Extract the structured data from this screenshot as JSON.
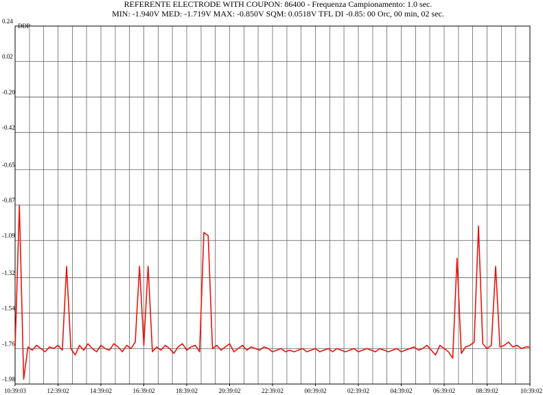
{
  "chart_data": {
    "type": "line",
    "title": "REFERENTE ELECTRODE WITH COUPON: 86400 - Frequenza Campionamento: 1.0 sec.",
    "subtitle": "MIN: -1.940V MED: -1.719V MAX: -0.850V SQM: 0.0518V TFL DI -0.85: 00 Orc, 00 min, 02 sec.",
    "y_label": "DDP",
    "ylim": [
      -1.98,
      0.24
    ],
    "yticks": [
      0.24,
      0.02,
      {
        "value": -0.2,
        "label": "-0.20"
      },
      -0.42,
      -0.65,
      -0.87,
      -1.09,
      -1.32,
      -1.54,
      -1.76,
      -1.98
    ],
    "xlim": [
      0,
      24
    ],
    "xticks": [
      {
        "value": 0,
        "label": "10:39:03"
      },
      {
        "value": 2,
        "label": "12:39:02"
      },
      {
        "value": 4,
        "label": "14:39:02"
      },
      {
        "value": 6,
        "label": "16:39:02"
      },
      {
        "value": 8,
        "label": "18:39:02"
      },
      {
        "value": 10,
        "label": "20:39:02"
      },
      {
        "value": 12,
        "label": "22:39:02"
      },
      {
        "value": 14,
        "label": "00:39:02"
      },
      {
        "value": 16,
        "label": "02:39:02"
      },
      {
        "value": 18,
        "label": "04:39:02"
      },
      {
        "value": 20,
        "label": "06:39:02"
      },
      {
        "value": 22,
        "label": "08:39:02"
      },
      {
        "value": 24,
        "label": "10:39:02"
      }
    ],
    "x_grid": [
      0,
      0.67,
      1.33,
      2,
      2.67,
      3.33,
      4,
      4.67,
      5.33,
      6,
      6.67,
      7.33,
      8,
      8.67,
      9.33,
      10,
      10.67,
      11.33,
      12,
      12.67,
      13.33,
      14,
      14.67,
      15.33,
      16,
      16.67,
      17.33,
      18,
      18.67,
      19.33,
      20,
      20.67,
      21.33,
      22,
      22.67,
      23.33,
      24
    ],
    "grid": true,
    "x": [
      0,
      0.2,
      0.4,
      0.6,
      0.8,
      1,
      1.2,
      1.4,
      1.6,
      1.8,
      2,
      2.2,
      2.4,
      2.6,
      2.8,
      3,
      3.2,
      3.4,
      3.6,
      3.8,
      4,
      4.2,
      4.4,
      4.6,
      4.8,
      5,
      5.2,
      5.4,
      5.6,
      5.8,
      6,
      6.2,
      6.4,
      6.6,
      6.8,
      7,
      7.2,
      7.4,
      7.6,
      7.8,
      8,
      8.2,
      8.4,
      8.6,
      8.8,
      9,
      9.2,
      9.4,
      9.6,
      9.8,
      10,
      10.2,
      10.4,
      10.6,
      10.8,
      11,
      11.2,
      11.4,
      11.6,
      11.8,
      12,
      12.2,
      12.4,
      12.6,
      12.8,
      13,
      13.2,
      13.4,
      13.6,
      13.8,
      14,
      14.2,
      14.4,
      14.6,
      14.8,
      15,
      15.2,
      15.4,
      15.6,
      15.8,
      16,
      16.2,
      16.4,
      16.6,
      16.8,
      17,
      17.2,
      17.4,
      17.6,
      17.8,
      18,
      18.2,
      18.4,
      18.6,
      18.8,
      19,
      19.2,
      19.4,
      19.6,
      19.8,
      20,
      20.2,
      20.4,
      20.6,
      20.8,
      21,
      21.2,
      21.4,
      21.6,
      21.8,
      22,
      22.2,
      22.4,
      22.6,
      22.8,
      23,
      23.2,
      23.4,
      23.6,
      23.8,
      24
    ],
    "series": [
      {
        "color": "#e8120c",
        "values": [
          -1.76,
          -0.87,
          -1.95,
          -1.75,
          -1.77,
          -1.74,
          -1.76,
          -1.78,
          -1.75,
          -1.76,
          -1.74,
          -1.77,
          -1.25,
          -1.76,
          -1.8,
          -1.74,
          -1.77,
          -1.73,
          -1.76,
          -1.78,
          -1.74,
          -1.76,
          -1.77,
          -1.73,
          -1.75,
          -1.78,
          -1.74,
          -1.76,
          -1.72,
          -1.25,
          -1.74,
          -1.25,
          -1.78,
          -1.75,
          -1.77,
          -1.74,
          -1.76,
          -1.79,
          -1.75,
          -1.73,
          -1.77,
          -1.75,
          -1.74,
          -1.78,
          -1.04,
          -1.06,
          -1.76,
          -1.74,
          -1.77,
          -1.75,
          -1.73,
          -1.78,
          -1.76,
          -1.74,
          -1.77,
          -1.75,
          -1.76,
          -1.77,
          -1.75,
          -1.76,
          -1.78,
          -1.77,
          -1.76,
          -1.78,
          -1.77,
          -1.78,
          -1.77,
          -1.76,
          -1.78,
          -1.77,
          -1.76,
          -1.78,
          -1.77,
          -1.76,
          -1.78,
          -1.76,
          -1.77,
          -1.78,
          -1.77,
          -1.76,
          -1.78,
          -1.77,
          -1.76,
          -1.77,
          -1.78,
          -1.76,
          -1.77,
          -1.78,
          -1.77,
          -1.76,
          -1.78,
          -1.77,
          -1.76,
          -1.75,
          -1.77,
          -1.76,
          -1.74,
          -1.77,
          -1.8,
          -1.74,
          -1.76,
          -1.78,
          -1.82,
          -1.2,
          -1.79,
          -1.75,
          -1.74,
          -1.72,
          -1.0,
          -1.73,
          -1.76,
          -1.74,
          -1.25,
          -1.75,
          -1.74,
          -1.72,
          -1.75,
          -1.74,
          -1.76,
          -1.75,
          -1.75
        ]
      }
    ]
  }
}
